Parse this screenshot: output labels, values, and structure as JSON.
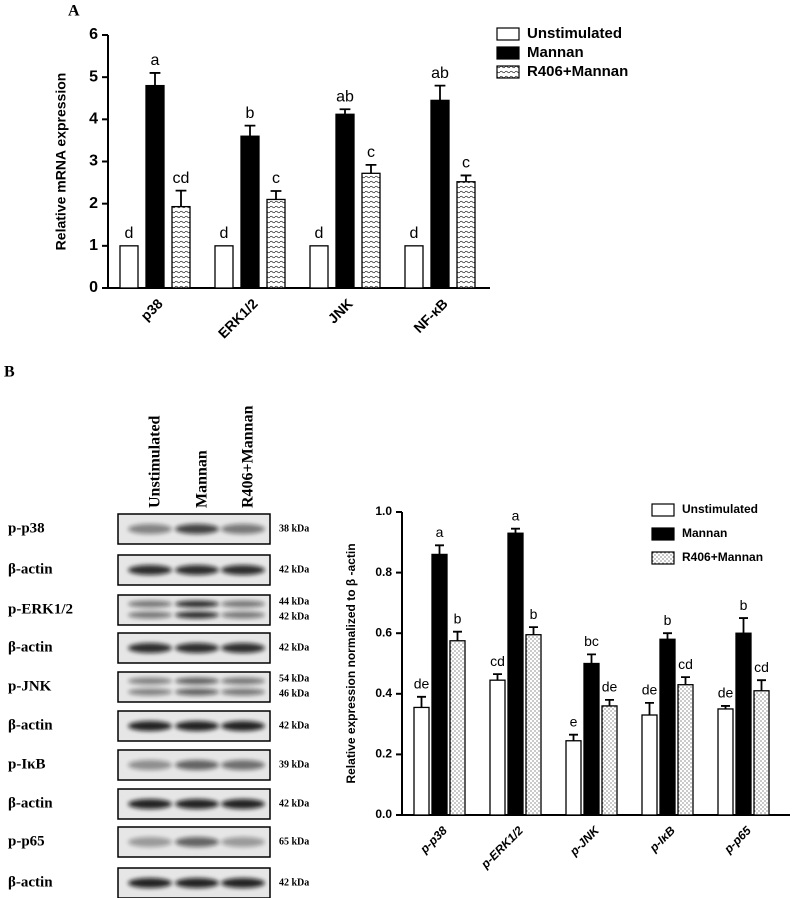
{
  "panels": [
    "A",
    "B"
  ],
  "chart_data": [
    {
      "type": "bar",
      "ylabel": "Relative mRNA expression",
      "categories": [
        "p38",
        "ERK1/2",
        "JNK",
        "NF-κB"
      ],
      "series": [
        {
          "name": "Unstimulated",
          "color": "#ffffff",
          "values": [
            1,
            1,
            1,
            1
          ],
          "labels": [
            "d",
            "d",
            "d",
            "d"
          ]
        },
        {
          "name": "Mannan",
          "color": "#000000",
          "values": [
            4.8,
            3.6,
            4.12,
            4.45
          ],
          "errors": [
            0.3,
            0.25,
            0.12,
            0.35
          ],
          "labels": [
            "a",
            "b",
            "ab",
            "ab"
          ]
        },
        {
          "name": "R406+Mannan",
          "color": "#ffffff",
          "pattern": "dots",
          "values": [
            1.93,
            2.1,
            2.72,
            2.52
          ],
          "errors": [
            0.38,
            0.2,
            0.2,
            0.15
          ],
          "labels": [
            "cd",
            "c",
            "c",
            "c"
          ]
        }
      ],
      "ylim": [
        0,
        6
      ],
      "yticks": [
        0,
        1,
        2,
        3,
        4,
        5,
        6
      ]
    },
    {
      "type": "bar",
      "ylabel": "Relative expression normalized to β -actin",
      "categories": [
        "p-p38",
        "p-ERK1/2",
        "p-JNK",
        "p-IκB",
        "p-p65"
      ],
      "series": [
        {
          "name": "Unstimulated",
          "color": "#ffffff",
          "values": [
            0.355,
            0.445,
            0.245,
            0.33,
            0.35
          ],
          "errors": [
            0.035,
            0.02,
            0.02,
            0.04,
            0.01
          ],
          "labels": [
            "de",
            "cd",
            "e",
            "de",
            "de"
          ]
        },
        {
          "name": "Mannan",
          "color": "#000000",
          "values": [
            0.86,
            0.93,
            0.5,
            0.58,
            0.6
          ],
          "errors": [
            0.03,
            0.015,
            0.03,
            0.02,
            0.05
          ],
          "labels": [
            "a",
            "a",
            "bc",
            "b",
            "b"
          ]
        },
        {
          "name": "R406+Mannan",
          "color": "#ffffff",
          "pattern": "dots",
          "values": [
            0.575,
            0.595,
            0.36,
            0.43,
            0.41
          ],
          "errors": [
            0.03,
            0.025,
            0.02,
            0.025,
            0.035
          ],
          "labels": [
            "b",
            "b",
            "de",
            "cd",
            "cd"
          ]
        }
      ],
      "ylim": [
        0,
        1
      ],
      "yticks": [
        {
          "value": 0,
          "label": "0.0"
        },
        {
          "value": 0.2,
          "label": "0.2"
        },
        {
          "value": 0.4,
          "label": "0.4"
        },
        {
          "value": 0.6,
          "label": "0.6"
        },
        {
          "value": 0.8,
          "label": "0.8"
        },
        {
          "value": 1,
          "label": "1.0"
        }
      ]
    }
  ],
  "blot": {
    "columns": [
      "Unstimulated",
      "Mannan",
      "R406+Mannan"
    ],
    "rows": [
      {
        "label": "p-p38",
        "kda": [
          "38 kDa"
        ]
      },
      {
        "label": "β-actin",
        "kda": [
          "42 kDa"
        ]
      },
      {
        "label": "p-ERK1/2",
        "kda": [
          "44 kDa",
          "42 kDa"
        ]
      },
      {
        "label": "β-actin",
        "kda": [
          "42 kDa"
        ]
      },
      {
        "label": "p-JNK",
        "kda": [
          "54 kDa",
          "46 kDa"
        ]
      },
      {
        "label": "β-actin",
        "kda": [
          "42 kDa"
        ]
      },
      {
        "label": "p-IκB",
        "kda": [
          "39 kDa"
        ]
      },
      {
        "label": "β-actin",
        "kda": [
          "42 kDa"
        ]
      },
      {
        "label": "p-p65",
        "kda": [
          "65 kDa"
        ]
      },
      {
        "label": "β-actin",
        "kda": [
          "42 kDa"
        ]
      }
    ]
  }
}
